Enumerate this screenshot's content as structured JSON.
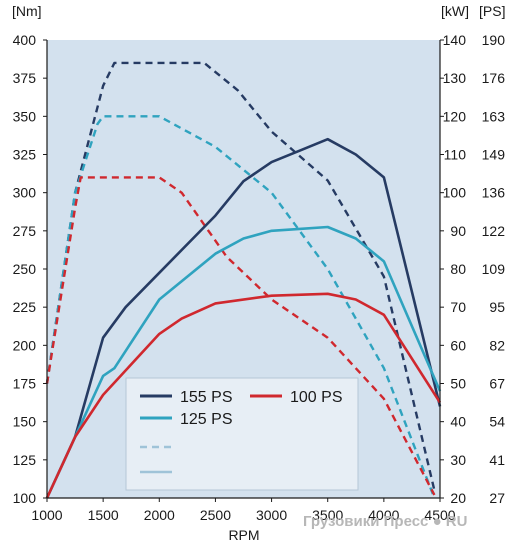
{
  "chart_data": {
    "type": "line",
    "title": "",
    "xlabel": "RPM",
    "ylabel_left": "[Nm]",
    "ylabel_right_kw": "[kW]",
    "ylabel_right_ps": "[PS]",
    "xlim": [
      1000,
      4500
    ],
    "ylim_left": [
      100,
      400
    ],
    "ylim_right_kw": [
      20,
      140
    ],
    "x_ticks": [
      "1000",
      "1500",
      "2000",
      "2500",
      "3000",
      "3500",
      "4000",
      "4500"
    ],
    "y_ticks_left": [
      "100",
      "125",
      "150",
      "175",
      "200",
      "225",
      "250",
      "275",
      "300",
      "325",
      "350",
      "375",
      "400"
    ],
    "y_ticks_kw": [
      "20",
      "30",
      "40",
      "50",
      "60",
      "70",
      "80",
      "90",
      "100",
      "110",
      "120",
      "130",
      "140"
    ],
    "y_ticks_ps": [
      "27",
      "41",
      "54",
      "67",
      "82",
      "95",
      "109",
      "122",
      "136",
      "149",
      "163",
      "176",
      "190"
    ],
    "grid": false,
    "plot_background": "#d3e1ee",
    "legend_position": "bottom-center",
    "legend_labels": {
      "ps155": "155 PS",
      "ps100": "100 PS",
      "ps125": "125 PS"
    },
    "series": [
      {
        "key": "ps155_power",
        "name": "155 PS",
        "kind": "power",
        "axis": "kw",
        "color": "#263b63",
        "dashed": false,
        "points": [
          [
            1000,
            20
          ],
          [
            1250,
            36
          ],
          [
            1500,
            62
          ],
          [
            1700,
            70
          ],
          [
            2000,
            79
          ],
          [
            2500,
            94
          ],
          [
            2750,
            103
          ],
          [
            3000,
            108
          ],
          [
            3250,
            111
          ],
          [
            3500,
            114
          ],
          [
            3750,
            110
          ],
          [
            4000,
            104
          ],
          [
            4500,
            44
          ]
        ]
      },
      {
        "key": "ps125_power",
        "name": "125 PS",
        "kind": "power",
        "axis": "kw",
        "color": "#2fa3bf",
        "dashed": false,
        "points": [
          [
            1000,
            20
          ],
          [
            1250,
            36
          ],
          [
            1500,
            52
          ],
          [
            1600,
            54
          ],
          [
            2000,
            72
          ],
          [
            2500,
            84
          ],
          [
            2750,
            88
          ],
          [
            3000,
            90
          ],
          [
            3250,
            90.5
          ],
          [
            3500,
            91
          ],
          [
            3750,
            88
          ],
          [
            4000,
            82
          ],
          [
            4500,
            48
          ]
        ]
      },
      {
        "key": "ps100_power",
        "name": "100 PS",
        "kind": "power",
        "axis": "kw",
        "color": "#d0282e",
        "dashed": false,
        "points": [
          [
            1000,
            20
          ],
          [
            1250,
            36
          ],
          [
            1500,
            47
          ],
          [
            2000,
            63
          ],
          [
            2200,
            67
          ],
          [
            2500,
            71
          ],
          [
            3000,
            73
          ],
          [
            3500,
            73.5
          ],
          [
            3750,
            72
          ],
          [
            4000,
            68
          ],
          [
            4500,
            45
          ]
        ]
      },
      {
        "key": "ps155_torque",
        "name": "155 PS",
        "kind": "torque",
        "axis": "nm",
        "color": "#263b63",
        "dashed": true,
        "points": [
          [
            1000,
            175
          ],
          [
            1250,
            300
          ],
          [
            1500,
            370
          ],
          [
            1600,
            385
          ],
          [
            2400,
            385
          ],
          [
            2700,
            367
          ],
          [
            3000,
            340
          ],
          [
            3500,
            308
          ],
          [
            4000,
            245
          ],
          [
            4450,
            105
          ]
        ]
      },
      {
        "key": "ps125_torque",
        "name": "125 PS",
        "kind": "torque",
        "axis": "nm",
        "color": "#2fa3bf",
        "dashed": true,
        "points": [
          [
            1000,
            175
          ],
          [
            1250,
            300
          ],
          [
            1450,
            345
          ],
          [
            1500,
            350
          ],
          [
            2000,
            350
          ],
          [
            2500,
            330
          ],
          [
            3000,
            300
          ],
          [
            3500,
            250
          ],
          [
            4000,
            185
          ],
          [
            4450,
            100
          ]
        ]
      },
      {
        "key": "ps100_torque",
        "name": "100 PS",
        "kind": "torque",
        "axis": "nm",
        "color": "#d0282e",
        "dashed": true,
        "points": [
          [
            1000,
            175
          ],
          [
            1250,
            290
          ],
          [
            1300,
            310
          ],
          [
            2000,
            310
          ],
          [
            2200,
            300
          ],
          [
            2600,
            258
          ],
          [
            3000,
            230
          ],
          [
            3500,
            205
          ],
          [
            4000,
            165
          ],
          [
            4450,
            102
          ]
        ]
      }
    ]
  },
  "watermark": "Грузовики Пресс ● RU"
}
